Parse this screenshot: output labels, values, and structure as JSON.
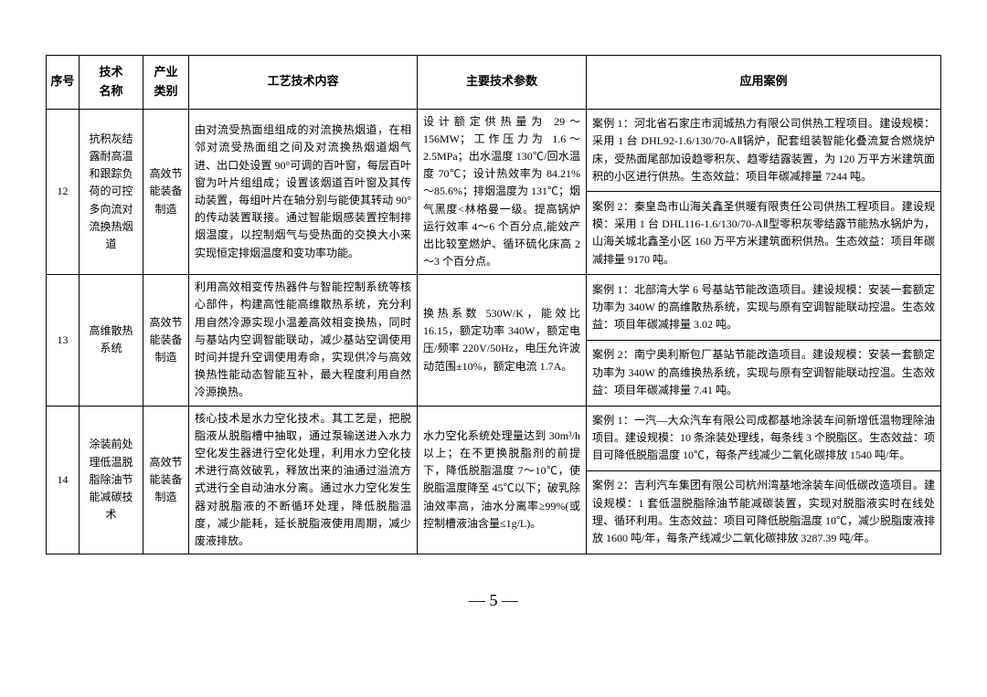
{
  "headers": {
    "seq": "序号",
    "name": "技术\n名称",
    "cat": "产业\n类别",
    "tech": "工艺技术内容",
    "param": "主要技术参数",
    "case": "应用案例"
  },
  "rows": [
    {
      "seq": "12",
      "name": "抗积灰结露耐高温和跟踪负荷的可控多向流对流换热烟道",
      "cat": "高效节能装备制造",
      "tech": "由对流受热面组组成的对流换热烟道，在相邻对流受热面组之间及对流换热烟道烟气进、出口处设置 90°可调的百叶窗，每层百叶窗为叶片组组成；设置该烟道百叶窗及其传动装置，每组叶片在轴分别与能使其转动 90°的传动装置联接。通过智能烟感装置控制排烟温度，以控制烟气与受热面的交换大小来实现恒定排烟温度和变功率功能。",
      "param": "设计额定供热量为 29～156MW；工作压力为 1.6～2.5MPa；出水温度 130℃/回水温度 70℃；设计热效率为 84.21%～85.6%；排烟温度为 131℃；烟气黑度<林格曼一级。提高锅炉运行效率 4～6 个百分点,能效产出比较室燃炉、循环硫化床高 2～3 个百分点。",
      "case1": "案例 1：河北省石家庄市润城热力有限公司供热工程项目。建设规模：采用 1 台 DHL92-1.6/130/70-AⅡ锅炉，配套组装智能化叠流复合燃烧炉床，受热面尾部加设趋零积灰、趋零结露装置，为 120 万平方米建筑面积的小区进行供热。生态效益：项目年碳减排量 7244 吨。",
      "case2": "案例 2：秦皇岛市山海关鑫圣供暖有限责任公司供热工程项目。建设规模：采用 1 台 DHL116-1.6/130/70-AⅡ型零积灰零结露节能热水锅炉为，山海关城北鑫圣小区 160 万平方米建筑面积供热。生态效益：项目年碳减排量 9170 吨。"
    },
    {
      "seq": "13",
      "name": "高维散热系统",
      "cat": "高效节能装备制造",
      "tech": "利用高效相变传热器件与智能控制系统等核心部件，构建高性能高维散热系统，充分利用自然冷源实现小温差高效相变换热，同时与基站内空调智能联动，减少基站空调使用时间并提升空调使用寿命，实现供冷与高效换热性能动态智能互补，最大程度利用自然冷源换热。",
      "param": "换热系数 530W/K，能效比 16.15，额定功率 340W，额定电压/频率 220V/50Hz，电压允许波动范围±10%，额定电流 1.7A。",
      "case1": "案例 1：北部湾大学 6 号基站节能改造项目。建设规模：安装一套额定功率为 340W 的高维散热系统，实现与原有空调智能联动控温。生态效益：项目年碳减排量 3.02 吨。",
      "case2": "案例 2：南宁奥利斯包厂基站节能改造项目。建设规模：安装一套额定功率为 340W 的高维换热系统，实现与原有空调智能联动控温。生态效益：项目年碳减排量 7.41 吨。"
    },
    {
      "seq": "14",
      "name": "涂装前处理低温脱脂除油节能减碳技术",
      "cat": "高效节能装备制造",
      "tech": "核心技术是水力空化技术。其工艺是，把脱脂液从脱脂槽中抽取，通过泵输送进入水力空化发生器进行空化处理，利用水力空化技术进行高效破乳，释放出来的油通过溢流方式进行全自动油水分离。通过水力空化发生器对脱脂液的不断循环处理，降低脱脂温度，减少能耗，延长脱脂液使用周期，减少废液排放。",
      "param": "水力空化系统处理量达到 30m³/h 以上；在不更换脱脂剂的前提下，降低脱脂温度 7～10℃，使脱脂温度降至 45℃以下；破乳除油效率高，油水分离率≥99%(或控制槽液油含量≤1g/L)。",
      "case1": "案例 1：一汽—大众汽车有限公司成都基地涂装车间新增低温物理除油项目。建设规模：10 条涂装处理线，每条线 3 个脱脂区。生态效益：项目可降低脱脂温度 10℃，每条产线减少二氧化碳排放 1540 吨/年。",
      "case2": "案例 2：吉利汽车集团有限公司杭州湾基地涂装车间低碳改造项目。建设规模：1 套低温脱脂除油节能减碳装置，实现对脱脂液实时在线处理、循环利用。生态效益：项目可降低脱脂温度 10℃，减少脱脂废液排放 1600 吨/年，每条产线减少二氧化碳排放 3287.39 吨/年。"
    }
  ],
  "pagenum": "— 5 —"
}
